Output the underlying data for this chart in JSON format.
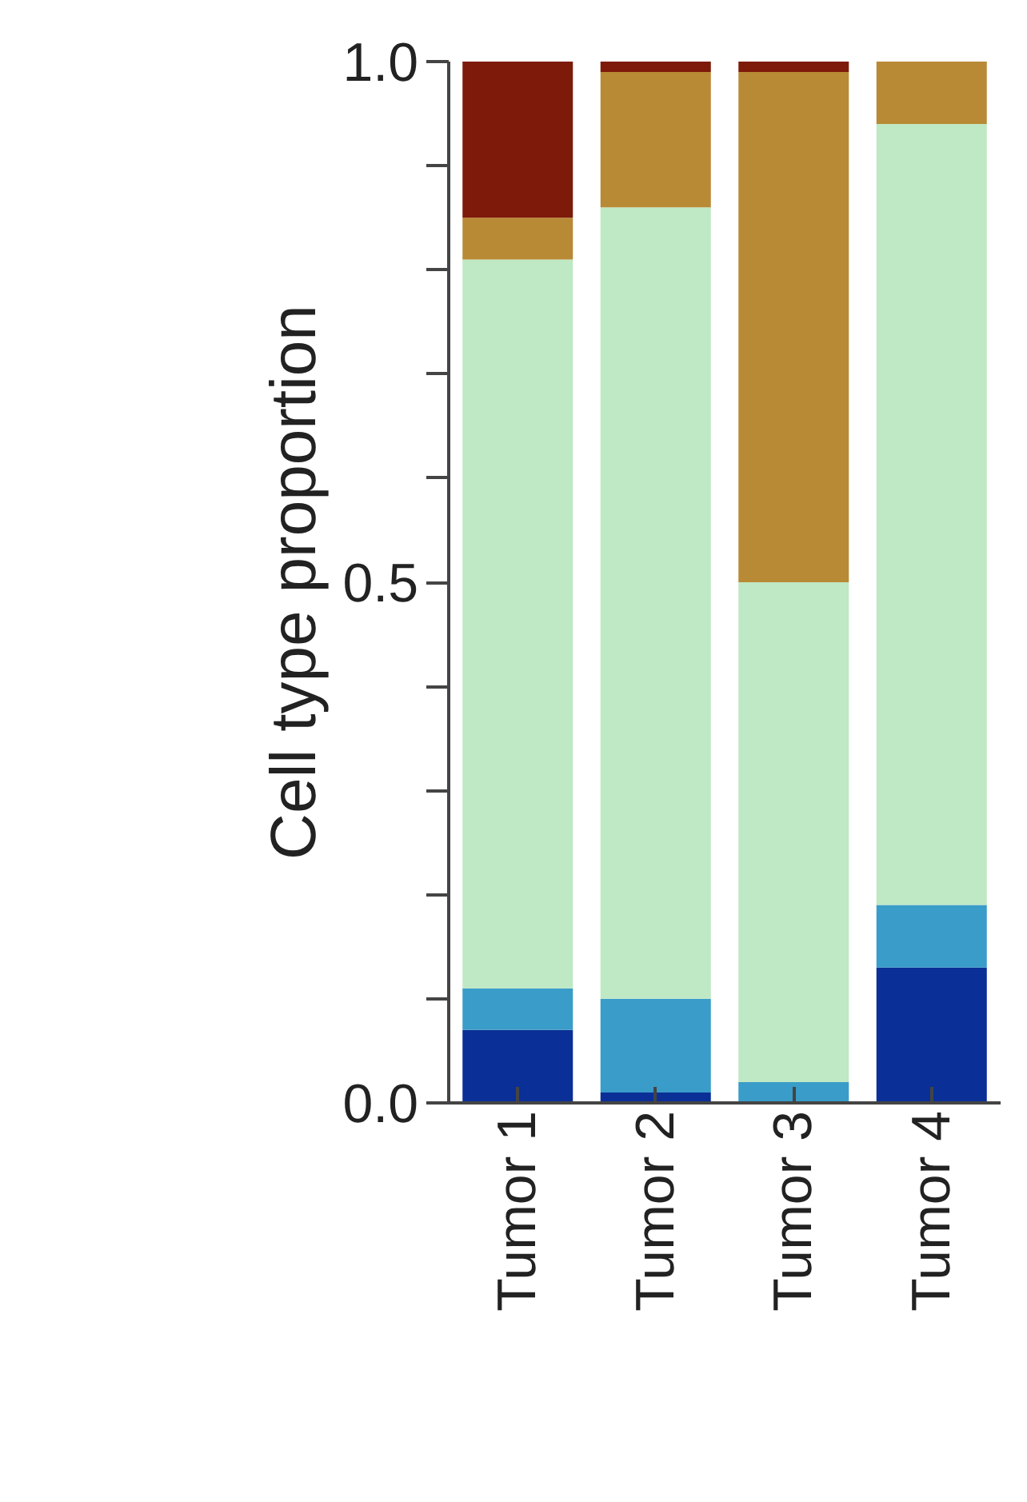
{
  "chart_data": {
    "type": "bar",
    "stacked": true,
    "ylabel": "Cell type proportion",
    "categories": [
      "Tumor 1",
      "Tumor 2",
      "Tumor 3",
      "Tumor 4"
    ],
    "series": [
      {
        "color": "#0a2f96",
        "values": [
          0.07,
          0.01,
          0,
          0.13
        ]
      },
      {
        "color": "#3a9cc8",
        "values": [
          0.04,
          0.09,
          0.02,
          0.06
        ]
      },
      {
        "color": "#bfe8c4",
        "values": [
          0.7,
          0.76,
          0.48,
          0.75
        ]
      },
      {
        "color": "#b88a35",
        "values": [
          0.04,
          0.13,
          0.49,
          0.06
        ]
      },
      {
        "color": "#7e1a0a",
        "values": [
          0.15,
          0.01,
          0.01,
          0.0
        ]
      }
    ],
    "ylim": [
      0,
      1
    ],
    "yticks": [
      {
        "value": 0,
        "label": "0.0"
      },
      {
        "value": 0.1,
        "label": null
      },
      {
        "value": 0.2,
        "label": null
      },
      {
        "value": 0.3,
        "label": null
      },
      {
        "value": 0.4,
        "label": null
      },
      {
        "value": 0.5,
        "label": "0.5"
      },
      {
        "value": 0.6,
        "label": null
      },
      {
        "value": 0.7,
        "label": null
      },
      {
        "value": 0.8,
        "label": null
      },
      {
        "value": 0.9,
        "label": null
      },
      {
        "value": 1.0,
        "label": "1.0"
      }
    ],
    "grid": false
  }
}
